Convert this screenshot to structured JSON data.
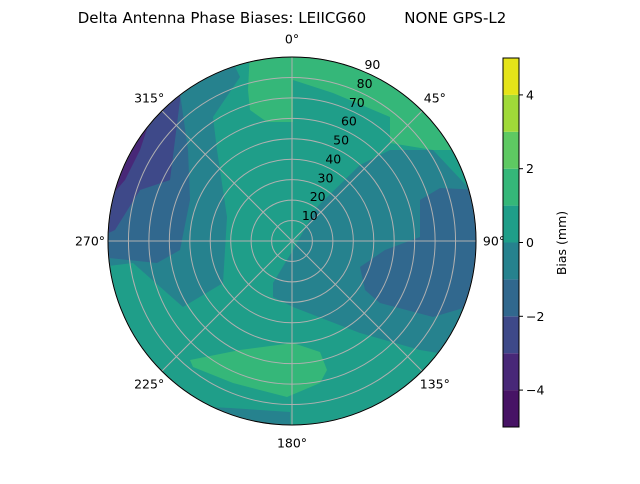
{
  "chart_data": {
    "type": "polar-contour",
    "title": "Delta Antenna Phase Biases: LEIICG60        NONE GPS-L2",
    "angular_axis": {
      "zero_location": "top",
      "direction": "clockwise",
      "tick_labels": [
        "0°",
        "45°",
        "90°",
        "135°",
        "180°",
        "225°",
        "270°",
        "315°"
      ],
      "tick_values": [
        0,
        45,
        90,
        135,
        180,
        225,
        270,
        315
      ]
    },
    "radial_axis": {
      "range": [
        0,
        90
      ],
      "tick_values": [
        10,
        20,
        30,
        40,
        50,
        60,
        70,
        80,
        90
      ],
      "tick_labels": [
        "10",
        "20",
        "30",
        "40",
        "50",
        "60",
        "70",
        "80",
        "90"
      ]
    },
    "grid": true,
    "colorbar": {
      "label": "Bias (mm)",
      "range": [
        -5,
        5
      ],
      "levels": [
        -5,
        -4,
        -3,
        -2,
        -1,
        0,
        1,
        2,
        3,
        4,
        5
      ],
      "tick_values": [
        -4,
        -2,
        0,
        2,
        4
      ],
      "tick_labels": [
        "−4",
        "−2",
        "0",
        "2",
        "4"
      ],
      "colormap": "viridis",
      "colors": [
        "#471365",
        "#482878",
        "#3e4989",
        "#31688e",
        "#26828e",
        "#1f9e89",
        "#35b779",
        "#5ec962",
        "#a0da39",
        "#e5e419"
      ],
      "placement": "right"
    },
    "regions": [
      {
        "level_range": [
          0,
          1
        ],
        "description_level": "background"
      },
      {
        "level_range": [
          1,
          2
        ],
        "areas": [
          "north azimuth 330-360 elev 55-90",
          "northeast azimuth 0-75 elev 50-90",
          "south azimuth 180-240 elev 60-85",
          "southeast edge azimuth 140-160"
        ]
      },
      {
        "level_range": [
          -1,
          0
        ],
        "areas": [
          "west/northwest band",
          "east/southeast sector",
          "south edge"
        ]
      },
      {
        "level_range": [
          -2,
          -1
        ],
        "areas": [
          "east azimuth 70-120 elev 40-90",
          "west/northwest edge band"
        ]
      },
      {
        "level_range": [
          -3,
          -2
        ],
        "areas": [
          "northwest edge azimuth 280-320"
        ]
      },
      {
        "level_range": [
          -4,
          -3
        ],
        "areas": [
          "northwest edge azimuth 290-310"
        ]
      }
    ]
  }
}
